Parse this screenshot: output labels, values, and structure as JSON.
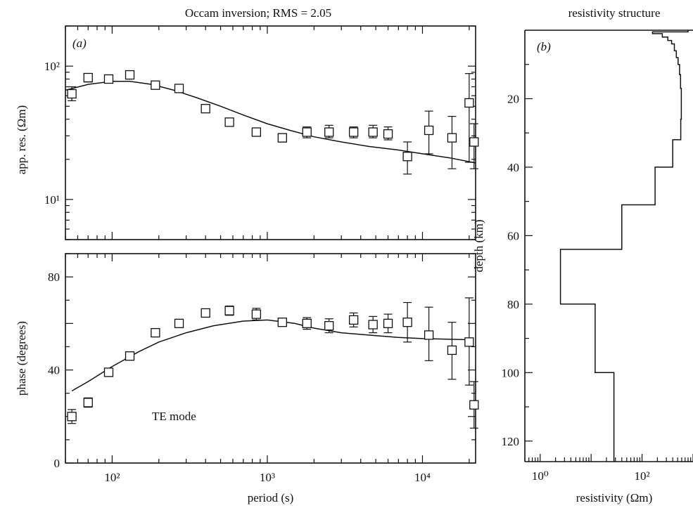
{
  "figure": {
    "title_left": "Occam inversion; RMS = 2.05",
    "title_right": "resistivity structure"
  },
  "chart_data": [
    {
      "id": "apparent-resistivity",
      "type": "scatter",
      "panel_label": "(a)",
      "xlabel": "",
      "ylabel": "app. res. (Ωm)",
      "x_scale": "log",
      "y_scale": "log",
      "xlim": [
        50,
        22000
      ],
      "ylim": [
        5,
        200
      ],
      "y_ticks": [
        {
          "value": 10,
          "label": "10¹"
        },
        {
          "value": 100,
          "label": "10²"
        }
      ],
      "grid": false,
      "series": [
        {
          "kind": "observed",
          "marker": "open-square",
          "points": [
            {
              "x": 55,
              "y": 62,
              "lo": 55,
              "hi": 70
            },
            {
              "x": 70,
              "y": 82,
              "lo": 76,
              "hi": 88
            },
            {
              "x": 95,
              "y": 80,
              "lo": 75,
              "hi": 86
            },
            {
              "x": 130,
              "y": 86,
              "lo": 80,
              "hi": 92
            },
            {
              "x": 190,
              "y": 72,
              "lo": 68,
              "hi": 76
            },
            {
              "x": 270,
              "y": 68,
              "lo": 64,
              "hi": 72
            },
            {
              "x": 400,
              "y": 48,
              "lo": 45,
              "hi": 51
            },
            {
              "x": 570,
              "y": 38,
              "lo": 36,
              "hi": 40
            },
            {
              "x": 850,
              "y": 32,
              "lo": 30,
              "hi": 34
            },
            {
              "x": 1250,
              "y": 29,
              "lo": 27,
              "hi": 31
            },
            {
              "x": 1800,
              "y": 32,
              "lo": 29,
              "hi": 35
            },
            {
              "x": 2500,
              "y": 32,
              "lo": 29,
              "hi": 36
            },
            {
              "x": 3600,
              "y": 32,
              "lo": 29,
              "hi": 35
            },
            {
              "x": 4800,
              "y": 32,
              "lo": 29,
              "hi": 36
            },
            {
              "x": 6000,
              "y": 31,
              "lo": 28,
              "hi": 35
            },
            {
              "x": 8000,
              "y": 21,
              "lo": 15.5,
              "hi": 27
            },
            {
              "x": 11000,
              "y": 33,
              "lo": 22,
              "hi": 46
            },
            {
              "x": 15500,
              "y": 29,
              "lo": 17,
              "hi": 42
            },
            {
              "x": 20000,
              "y": 53,
              "lo": 19,
              "hi": 88
            },
            {
              "x": 21500,
              "y": 27,
              "lo": 17,
              "hi": 37
            }
          ]
        },
        {
          "kind": "model",
          "line": "solid",
          "points": [
            {
              "x": 50,
              "y": 66
            },
            {
              "x": 70,
              "y": 73
            },
            {
              "x": 100,
              "y": 77
            },
            {
              "x": 130,
              "y": 77
            },
            {
              "x": 180,
              "y": 73
            },
            {
              "x": 250,
              "y": 66
            },
            {
              "x": 350,
              "y": 58
            },
            {
              "x": 500,
              "y": 50
            },
            {
              "x": 700,
              "y": 43
            },
            {
              "x": 1000,
              "y": 37
            },
            {
              "x": 1400,
              "y": 33
            },
            {
              "x": 2000,
              "y": 29.5
            },
            {
              "x": 3000,
              "y": 27
            },
            {
              "x": 4500,
              "y": 25
            },
            {
              "x": 7000,
              "y": 23.5
            },
            {
              "x": 10000,
              "y": 22
            },
            {
              "x": 15000,
              "y": 20.5
            },
            {
              "x": 22000,
              "y": 18.8
            }
          ]
        }
      ]
    },
    {
      "id": "phase",
      "type": "scatter",
      "panel_label": "",
      "annotation": "TE mode",
      "xlabel": "period (s)",
      "ylabel": "phase (degrees)",
      "x_scale": "log",
      "xlim": [
        50,
        22000
      ],
      "ylim": [
        0,
        90
      ],
      "x_ticks": [
        {
          "value": 100,
          "label": "10²"
        },
        {
          "value": 1000,
          "label": "10³"
        },
        {
          "value": 10000,
          "label": "10⁴"
        }
      ],
      "y_ticks": [
        {
          "value": 0,
          "label": "0"
        },
        {
          "value": 40,
          "label": "40"
        },
        {
          "value": 80,
          "label": "80"
        }
      ],
      "grid": false,
      "series": [
        {
          "kind": "observed",
          "marker": "open-square",
          "points": [
            {
              "x": 55,
              "y": 20,
              "lo": 17,
              "hi": 23
            },
            {
              "x": 70,
              "y": 26,
              "lo": 24,
              "hi": 28
            },
            {
              "x": 95,
              "y": 39,
              "lo": 37.5,
              "hi": 40.5
            },
            {
              "x": 130,
              "y": 46,
              "lo": 44.5,
              "hi": 47.5
            },
            {
              "x": 190,
              "y": 56,
              "lo": 55,
              "hi": 57
            },
            {
              "x": 270,
              "y": 60,
              "lo": 59,
              "hi": 61
            },
            {
              "x": 400,
              "y": 64.5,
              "lo": 63.5,
              "hi": 65.5
            },
            {
              "x": 570,
              "y": 65.5,
              "lo": 63.5,
              "hi": 67.5
            },
            {
              "x": 850,
              "y": 64,
              "lo": 61.5,
              "hi": 66.5
            },
            {
              "x": 1250,
              "y": 60.5,
              "lo": 59,
              "hi": 62
            },
            {
              "x": 1800,
              "y": 60,
              "lo": 57.5,
              "hi": 62.5
            },
            {
              "x": 2500,
              "y": 59,
              "lo": 56,
              "hi": 62
            },
            {
              "x": 3600,
              "y": 61.5,
              "lo": 58.5,
              "hi": 64.5
            },
            {
              "x": 4800,
              "y": 59.5,
              "lo": 56,
              "hi": 63
            },
            {
              "x": 6000,
              "y": 60,
              "lo": 56,
              "hi": 64
            },
            {
              "x": 8000,
              "y": 60.5,
              "lo": 52,
              "hi": 69
            },
            {
              "x": 11000,
              "y": 55,
              "lo": 44,
              "hi": 67
            },
            {
              "x": 15500,
              "y": 48.5,
              "lo": 36,
              "hi": 60.5
            },
            {
              "x": 20000,
              "y": 52,
              "lo": 33.5,
              "hi": 71
            },
            {
              "x": 21500,
              "y": 25,
              "lo": 15,
              "hi": 35
            }
          ]
        },
        {
          "kind": "model",
          "line": "solid",
          "points": [
            {
              "x": 55,
              "y": 31
            },
            {
              "x": 70,
              "y": 35
            },
            {
              "x": 100,
              "y": 41.5
            },
            {
              "x": 150,
              "y": 48
            },
            {
              "x": 200,
              "y": 52
            },
            {
              "x": 300,
              "y": 56
            },
            {
              "x": 450,
              "y": 59
            },
            {
              "x": 700,
              "y": 61
            },
            {
              "x": 1000,
              "y": 61.5
            },
            {
              "x": 1500,
              "y": 60
            },
            {
              "x": 2000,
              "y": 58
            },
            {
              "x": 3000,
              "y": 56
            },
            {
              "x": 4500,
              "y": 55
            },
            {
              "x": 7000,
              "y": 54
            },
            {
              "x": 10000,
              "y": 53.5
            },
            {
              "x": 20000,
              "y": 53
            }
          ]
        }
      ]
    },
    {
      "id": "resistivity-structure",
      "type": "line",
      "panel_label": "(b)",
      "xlabel": "resistivity (Ωm)",
      "ylabel": "depth (km)",
      "x_scale": "log",
      "xlim": [
        0.5,
        1000
      ],
      "ylim": [
        126,
        0
      ],
      "x_ticks": [
        {
          "value": 1,
          "label": "10⁰"
        },
        {
          "value": 100,
          "label": "10²"
        }
      ],
      "y_ticks": [
        {
          "value": 20,
          "label": "20"
        },
        {
          "value": 40,
          "label": "40"
        },
        {
          "value": 60,
          "label": "60"
        },
        {
          "value": 80,
          "label": "80"
        },
        {
          "value": 100,
          "label": "100"
        },
        {
          "value": 120,
          "label": "120"
        }
      ],
      "grid": false,
      "layers": [
        {
          "top": 0,
          "bottom": 0.5,
          "rho": 800
        },
        {
          "top": 0.5,
          "bottom": 1,
          "rho": 160
        },
        {
          "top": 1,
          "bottom": 2,
          "rho": 250
        },
        {
          "top": 2,
          "bottom": 3,
          "rho": 320
        },
        {
          "top": 3,
          "bottom": 4,
          "rho": 380
        },
        {
          "top": 4,
          "bottom": 6,
          "rho": 430
        },
        {
          "top": 6,
          "bottom": 8,
          "rho": 470
        },
        {
          "top": 8,
          "bottom": 10,
          "rho": 510
        },
        {
          "top": 10,
          "bottom": 13,
          "rho": 545
        },
        {
          "top": 13,
          "bottom": 17,
          "rho": 570
        },
        {
          "top": 17,
          "bottom": 26,
          "rho": 590
        },
        {
          "top": 26,
          "bottom": 32,
          "rho": 575
        },
        {
          "top": 32,
          "bottom": 40,
          "rho": 400
        },
        {
          "top": 40,
          "bottom": 51,
          "rho": 180
        },
        {
          "top": 51,
          "bottom": 64,
          "rho": 40
        },
        {
          "top": 64,
          "bottom": 80,
          "rho": 2.5
        },
        {
          "top": 80,
          "bottom": 100,
          "rho": 12
        },
        {
          "top": 100,
          "bottom": 126,
          "rho": 28
        }
      ]
    }
  ]
}
